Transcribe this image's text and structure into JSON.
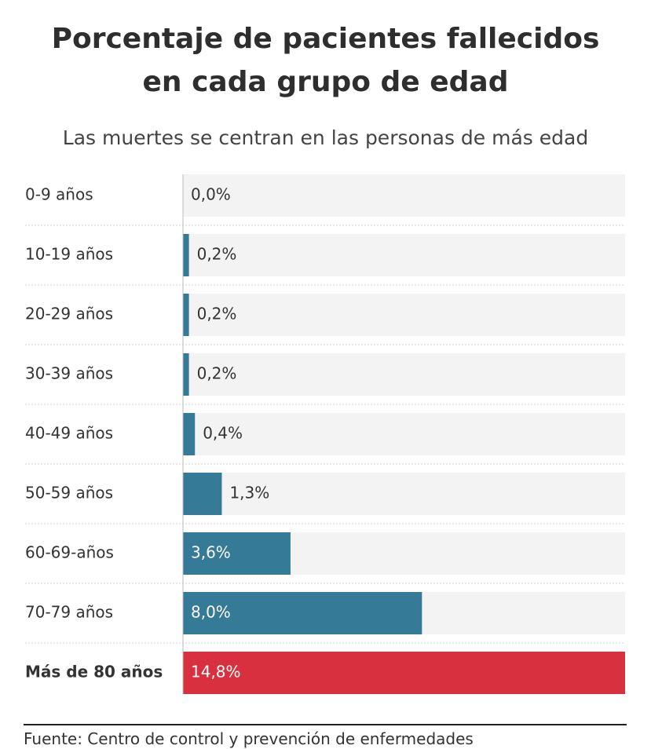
{
  "title": "Porcentaje de pacientes fallecidos\nen cada grupo de edad",
  "subtitle": "Las muertes se centran en las personas de más edad",
  "source": "Fuente: Centro de control y prevención de enfermedades",
  "colors": {
    "bar": "#357a96",
    "highlight": "#d9303f",
    "track": "#f3f3f3",
    "label": "#333333"
  },
  "chart_data": {
    "type": "bar",
    "orientation": "horizontal",
    "categories": [
      "0-9 años",
      "10-19 años",
      "20-29 años",
      "30-39 años",
      "40-49 años",
      "50-59 años",
      "60-69-años",
      "70-79 años",
      "Más de 80 años"
    ],
    "values": [
      0.0,
      0.2,
      0.2,
      0.2,
      0.4,
      1.3,
      3.6,
      8.0,
      14.8
    ],
    "value_labels": [
      "0,0%",
      "0,2%",
      "0,2%",
      "0,2%",
      "0,4%",
      "1,3%",
      "3,6%",
      "8,0%",
      "14,8%"
    ],
    "highlight_index": 8,
    "xlim": [
      0,
      14.8
    ],
    "unit": "%",
    "grid": false,
    "legend": "none"
  }
}
